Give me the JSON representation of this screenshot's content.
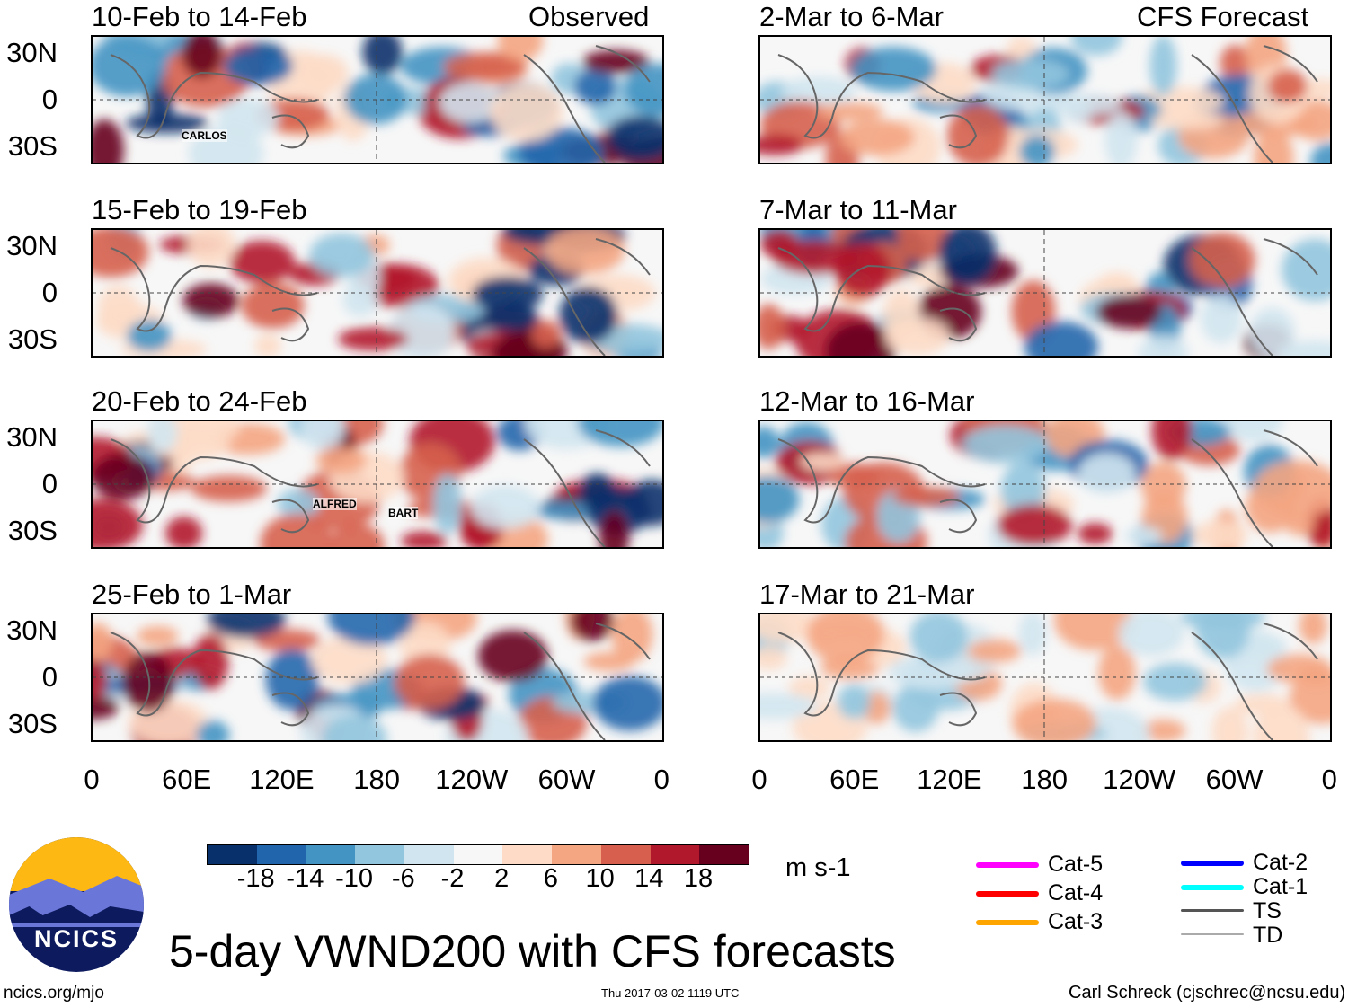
{
  "header": {
    "left_label": "Observed",
    "right_label": "CFS Forecast"
  },
  "panels_observed": [
    "10-Feb to 14-Feb",
    "15-Feb to 19-Feb",
    "20-Feb to 24-Feb",
    "25-Feb to 1-Mar"
  ],
  "panels_forecast": [
    "2-Mar to 6-Mar",
    "7-Mar to 11-Mar",
    "12-Mar to 16-Mar",
    "17-Mar to 21-Mar"
  ],
  "lat_labels": [
    "30N",
    "0",
    "30S"
  ],
  "lon_labels": [
    "0",
    "60E",
    "120E",
    "180",
    "120W",
    "60W",
    "0"
  ],
  "storms": {
    "carlos": "CARLOS",
    "alfred": "ALFRED",
    "bart": "BART"
  },
  "colorbar": {
    "labels": [
      "-18",
      "-14",
      "-10",
      "-6",
      "-2",
      "2",
      "6",
      "10",
      "14",
      "18"
    ],
    "units": "m s-1",
    "colors": [
      "#08306b",
      "#2166ac",
      "#4393c3",
      "#92c5de",
      "#d1e5f0",
      "#f7f7f7",
      "#fddbc7",
      "#f4a582",
      "#d6604d",
      "#b2182b",
      "#67001f"
    ]
  },
  "legend": [
    {
      "label": "Cat-5",
      "color": "#ff00ff"
    },
    {
      "label": "Cat-4",
      "color": "#ff0000"
    },
    {
      "label": "Cat-3",
      "color": "#ffa500"
    },
    {
      "label": "Cat-2",
      "color": "#0000ff"
    },
    {
      "label": "Cat-1",
      "color": "#00ffff"
    },
    {
      "label": "TS",
      "color": "#555555"
    },
    {
      "label": "TD",
      "color": "#aaaaaa"
    }
  ],
  "title": "5-day VWND200 with CFS forecasts",
  "logo_text": "NCICS",
  "footer": {
    "url": "ncics.org/mjo",
    "timestamp": "Thu 2017-03-02 1119 UTC",
    "author": "Carl Schreck (cjschrec@ncsu.edu)"
  }
}
